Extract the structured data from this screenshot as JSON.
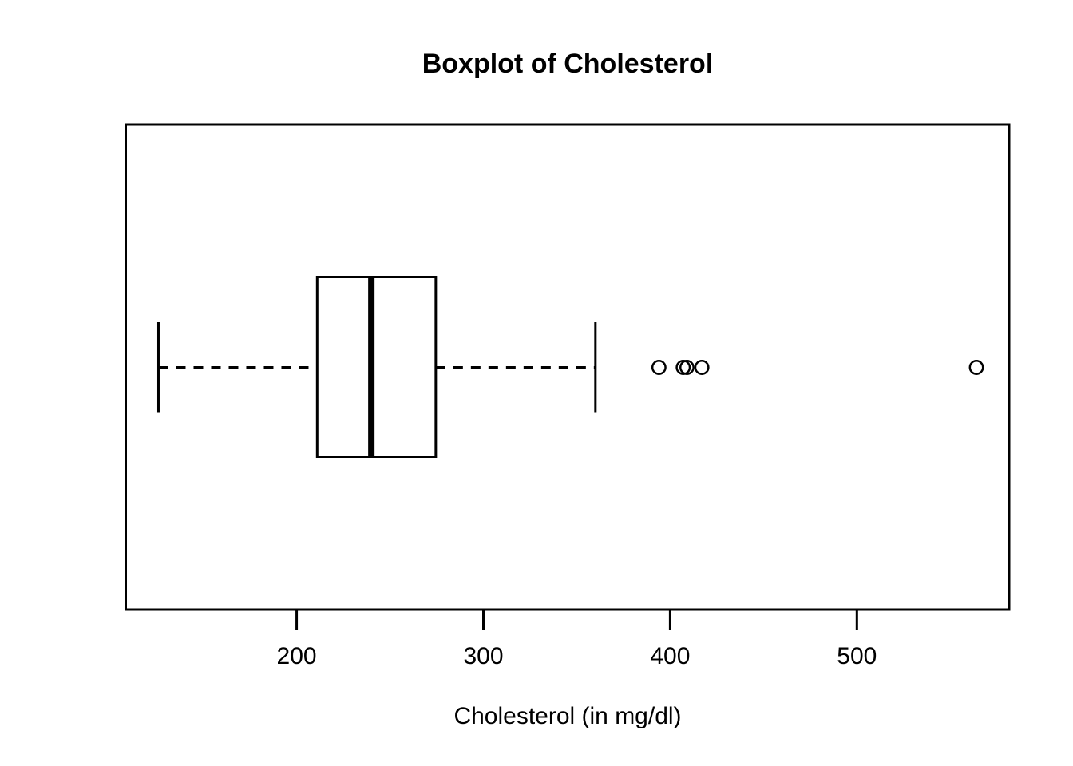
{
  "page": {
    "background_color": "#ffffff",
    "foreground_color": "#000000"
  },
  "chart_data": {
    "type": "boxplot",
    "orientation": "horizontal",
    "title": "Boxplot of Cholesterol",
    "xlabel": "Cholesterol (in mg/dl)",
    "ylabel": "",
    "xticks": [
      200,
      300,
      400,
      500
    ],
    "xlim": [
      108.48,
      581.52
    ],
    "grid": false,
    "legend": false,
    "series": [
      {
        "name": "Cholesterol",
        "stats": {
          "whisker_low": 126,
          "q1": 211,
          "median": 240,
          "q3": 274.5,
          "whisker_high": 360
        },
        "outliers": [
          394,
          407,
          409,
          417,
          564
        ]
      }
    ],
    "style": {
      "box_fill": "#ffffff",
      "stroke_color": "#000000",
      "whisker_linestyle": "dashed"
    }
  }
}
